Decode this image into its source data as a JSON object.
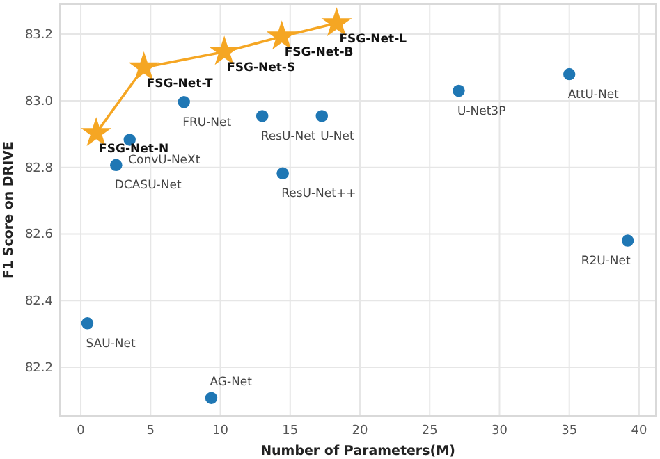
{
  "chart_data": {
    "type": "scatter",
    "xlabel": "Number of Parameters(M)",
    "ylabel": "F1 Score on DRIVE",
    "xlim": [
      -1.5,
      41.2
    ],
    "ylim": [
      82.054,
      83.29
    ],
    "xticks": [
      0,
      5,
      10,
      15,
      20,
      25,
      30,
      35,
      40
    ],
    "yticks": [
      82.2,
      82.4,
      82.6,
      82.8,
      {
        "value": 83.0,
        "label": "83.0"
      },
      83.2
    ],
    "grid": true,
    "series": [
      {
        "marker": "circle",
        "color": "#1f77b4",
        "x": [
          0.47,
          9.35,
          2.53,
          3.5,
          7.39,
          13.0,
          14.47,
          17.27,
          27.08,
          35.0,
          39.19
        ],
        "values": [
          82.332,
          82.108,
          82.807,
          82.883,
          82.996,
          82.954,
          82.782,
          82.954,
          83.03,
          83.08,
          82.58
        ],
        "value_labels": [
          "SAU-Net",
          "AG-Net",
          "DCASU-Net",
          "ConvU-NeXt",
          "FRU-Net",
          "ResU-Net",
          "ResU-Net++",
          "U-Net",
          "U-Net3P",
          "AttU-Net",
          "R2U-Net"
        ]
      },
      {
        "type": "line",
        "marker": "star",
        "color": "#f5a623",
        "x": [
          1.1,
          4.52,
          10.28,
          14.4,
          18.33
        ],
        "values": [
          82.903,
          83.1,
          83.147,
          83.193,
          83.233
        ],
        "value_labels": [
          "FSG-Net-N",
          "FSG-Net-T",
          "FSG-Net-S",
          "FSG-Net-B",
          "FSG-Net-L"
        ]
      }
    ]
  }
}
